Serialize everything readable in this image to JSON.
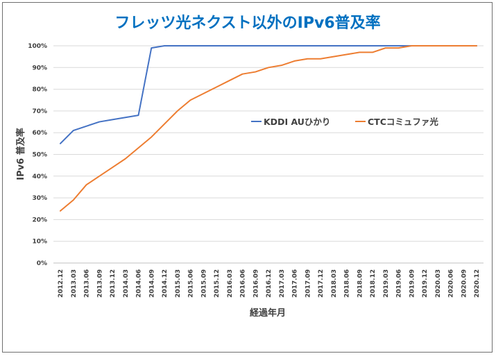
{
  "chart_data": {
    "type": "line",
    "title": "フレッツ光ネクスト以外のIPv6普及率",
    "title_color": "#0070c0",
    "xlabel": "経過年月",
    "ylabel": "IPv6 普及率",
    "ylim": [
      0,
      100
    ],
    "y_ticks": [
      "0%",
      "10%",
      "20%",
      "30%",
      "40%",
      "50%",
      "60%",
      "70%",
      "80%",
      "90%",
      "100%"
    ],
    "grid": true,
    "legend_position": "right-middle",
    "categories": [
      "2012.12",
      "2013.03",
      "2013.06",
      "2013.09",
      "2013.12",
      "2014.03",
      "2014.06",
      "2014.09",
      "2014.12",
      "2015.03",
      "2015.06",
      "2015.09",
      "2015.12",
      "2016.03",
      "2016.06",
      "2016.09",
      "2016.12",
      "2017.03",
      "2017.06",
      "2017.09",
      "2017.12",
      "2018.03",
      "2018.06",
      "2018.09",
      "2018.12",
      "2019.03",
      "2019.06",
      "2019.09",
      "2019.12",
      "2020.03",
      "2020.06",
      "2020.09",
      "2020.12"
    ],
    "series": [
      {
        "name": "KDDI AUひかり",
        "color": "#4472c4",
        "values": [
          55,
          61,
          63,
          65,
          66,
          67,
          68,
          99,
          100,
          100,
          100,
          100,
          100,
          100,
          100,
          100,
          100,
          100,
          100,
          100,
          100,
          100,
          100,
          100,
          100,
          100,
          100,
          100,
          100,
          100,
          100,
          100,
          100
        ]
      },
      {
        "name": "CTCコミュファ光",
        "color": "#ed7d31",
        "values": [
          24,
          29,
          36,
          40,
          44,
          48,
          53,
          58,
          64,
          70,
          75,
          78,
          81,
          84,
          87,
          88,
          90,
          91,
          93,
          94,
          94,
          95,
          96,
          97,
          97,
          99,
          99,
          100,
          100,
          100,
          100,
          100,
          100
        ]
      }
    ]
  }
}
